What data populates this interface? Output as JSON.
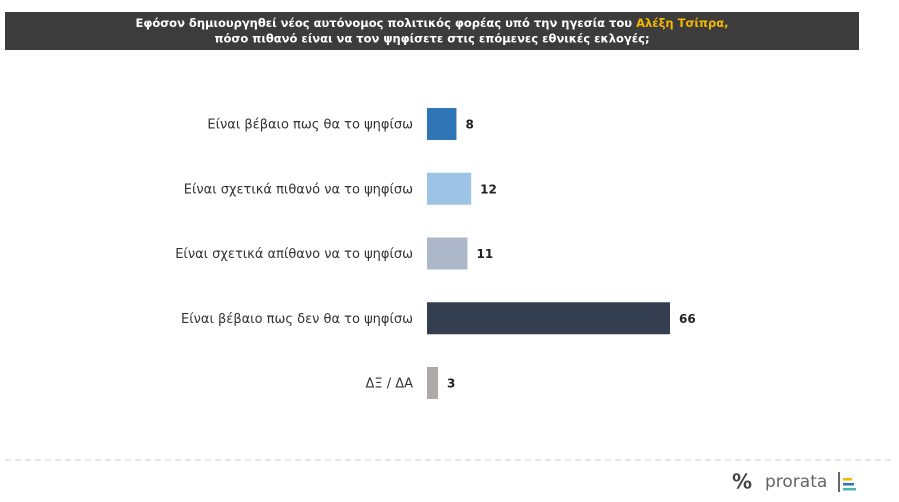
{
  "chart_data": {
    "type": "bar",
    "orientation": "horizontal",
    "title": {
      "before": "Εφόσον δημιουργηθεί νέος αυτόνομος πολιτικός φορέας υπό την ηγεσία του",
      "highlight": "Αλέξη Τσίπρα,",
      "after": "πόσο πιθανό είναι να τον ψηφίσετε στις επόμενες εθνικές εκλογές;",
      "highlight_color": "#f5b800"
    },
    "categories": [
      "Είναι βέβαιο πως θα το ψηφίσω",
      "Είναι σχετικά πιθανό να το ψηφίσω",
      "Είναι σχετικά απίθανο να το ψηφίσω",
      "Είναι βέβαιο πως δεν θα το ψηφίσω",
      "ΔΞ / ΔΑ"
    ],
    "values": [
      8,
      12,
      11,
      66,
      3
    ],
    "colors": [
      "#2e75b6",
      "#9dc3e6",
      "#adb9ca",
      "#333f50",
      "#aeaaaa"
    ]
  },
  "footer": {
    "symbol": "%",
    "logo": "prorata"
  }
}
